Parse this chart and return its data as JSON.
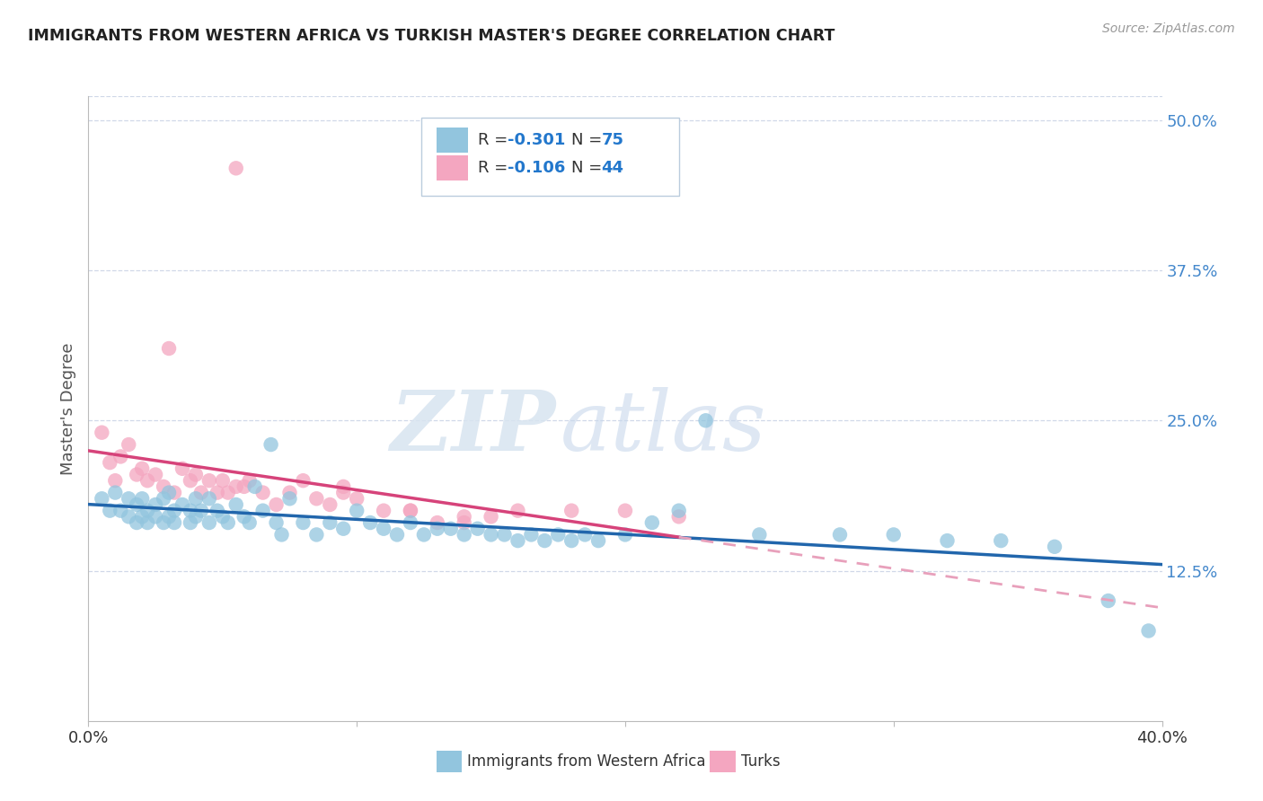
{
  "title": "IMMIGRANTS FROM WESTERN AFRICA VS TURKISH MASTER'S DEGREE CORRELATION CHART",
  "source": "Source: ZipAtlas.com",
  "ylabel": "Master's Degree",
  "ytick_values": [
    0.0,
    0.125,
    0.25,
    0.375,
    0.5
  ],
  "xlim": [
    0.0,
    0.4
  ],
  "ylim": [
    0.0,
    0.52
  ],
  "color_blue": "#92c5de",
  "color_pink": "#f4a6c0",
  "color_blue_line": "#2166ac",
  "color_pink_line": "#d6437a",
  "color_pink_dash": "#e8a0bb",
  "watermark_zip": "ZIP",
  "watermark_atlas": "atlas",
  "background_color": "#ffffff",
  "grid_color": "#d0d8e8",
  "blue_x": [
    0.005,
    0.008,
    0.01,
    0.012,
    0.015,
    0.015,
    0.018,
    0.018,
    0.02,
    0.02,
    0.022,
    0.022,
    0.025,
    0.025,
    0.028,
    0.028,
    0.03,
    0.03,
    0.032,
    0.032,
    0.035,
    0.038,
    0.038,
    0.04,
    0.04,
    0.042,
    0.045,
    0.045,
    0.048,
    0.05,
    0.052,
    0.055,
    0.058,
    0.06,
    0.062,
    0.065,
    0.068,
    0.07,
    0.072,
    0.075,
    0.08,
    0.085,
    0.09,
    0.095,
    0.1,
    0.105,
    0.11,
    0.115,
    0.12,
    0.125,
    0.13,
    0.135,
    0.14,
    0.145,
    0.15,
    0.155,
    0.16,
    0.165,
    0.17,
    0.175,
    0.18,
    0.185,
    0.19,
    0.2,
    0.21,
    0.22,
    0.23,
    0.25,
    0.28,
    0.3,
    0.32,
    0.34,
    0.36,
    0.38,
    0.395
  ],
  "blue_y": [
    0.185,
    0.175,
    0.19,
    0.175,
    0.185,
    0.17,
    0.18,
    0.165,
    0.185,
    0.17,
    0.175,
    0.165,
    0.18,
    0.17,
    0.185,
    0.165,
    0.19,
    0.17,
    0.175,
    0.165,
    0.18,
    0.175,
    0.165,
    0.185,
    0.17,
    0.175,
    0.185,
    0.165,
    0.175,
    0.17,
    0.165,
    0.18,
    0.17,
    0.165,
    0.195,
    0.175,
    0.23,
    0.165,
    0.155,
    0.185,
    0.165,
    0.155,
    0.165,
    0.16,
    0.175,
    0.165,
    0.16,
    0.155,
    0.165,
    0.155,
    0.16,
    0.16,
    0.155,
    0.16,
    0.155,
    0.155,
    0.15,
    0.155,
    0.15,
    0.155,
    0.15,
    0.155,
    0.15,
    0.155,
    0.165,
    0.175,
    0.25,
    0.155,
    0.155,
    0.155,
    0.15,
    0.15,
    0.145,
    0.1,
    0.075
  ],
  "pink_x": [
    0.005,
    0.008,
    0.01,
    0.012,
    0.015,
    0.018,
    0.02,
    0.022,
    0.025,
    0.028,
    0.03,
    0.032,
    0.035,
    0.038,
    0.04,
    0.042,
    0.045,
    0.048,
    0.05,
    0.052,
    0.055,
    0.058,
    0.06,
    0.065,
    0.07,
    0.075,
    0.08,
    0.085,
    0.09,
    0.095,
    0.1,
    0.11,
    0.12,
    0.13,
    0.14,
    0.15,
    0.16,
    0.18,
    0.2,
    0.22,
    0.12,
    0.14,
    0.055,
    0.095
  ],
  "pink_y": [
    0.24,
    0.215,
    0.2,
    0.22,
    0.23,
    0.205,
    0.21,
    0.2,
    0.205,
    0.195,
    0.31,
    0.19,
    0.21,
    0.2,
    0.205,
    0.19,
    0.2,
    0.19,
    0.2,
    0.19,
    0.46,
    0.195,
    0.2,
    0.19,
    0.18,
    0.19,
    0.2,
    0.185,
    0.18,
    0.19,
    0.185,
    0.175,
    0.175,
    0.165,
    0.17,
    0.17,
    0.175,
    0.175,
    0.175,
    0.17,
    0.175,
    0.165,
    0.195,
    0.195
  ]
}
